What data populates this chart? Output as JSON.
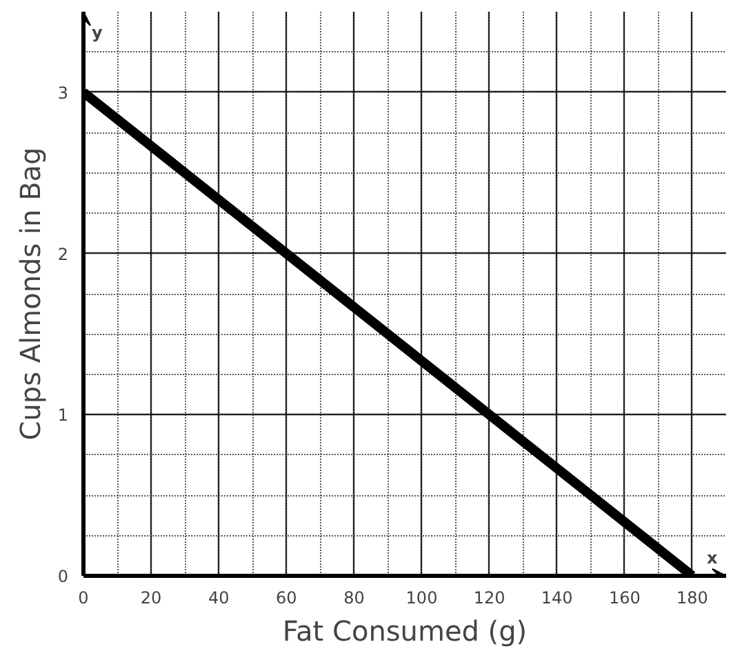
{
  "chart_data": {
    "type": "line",
    "xlabel": "Fat Consumed (g)",
    "ylabel": "Cups Almonds in Bag",
    "x": [
      0,
      180
    ],
    "series": [
      {
        "color": "#000000",
        "values": [
          3,
          0
        ]
      }
    ],
    "xlim": [
      0,
      190
    ],
    "ylim": [
      0,
      3.5
    ],
    "xticks": [
      0,
      20,
      40,
      60,
      80,
      100,
      120,
      140,
      160,
      180
    ],
    "yticks": [
      0,
      1,
      2,
      3
    ],
    "annotations": [
      "x",
      "y"
    ],
    "grid": true,
    "marker": "none",
    "line_style": "solid"
  }
}
